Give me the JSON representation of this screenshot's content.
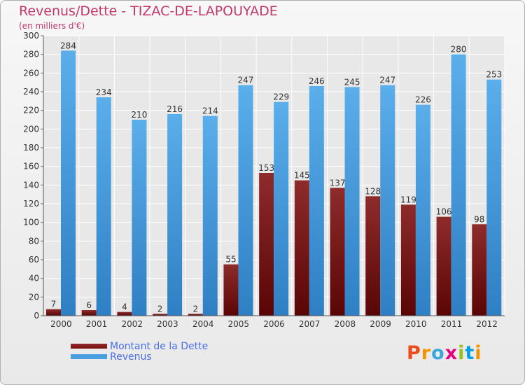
{
  "logo": {
    "text": "Proxiti"
  },
  "chart_data": {
    "type": "bar",
    "title": "Revenus/Dette - TIZAC-DE-LAPOUYADE",
    "subtitle": "(en milliers d'€)",
    "categories": [
      "2000",
      "2001",
      "2002",
      "2003",
      "2004",
      "2005",
      "2006",
      "2007",
      "2008",
      "2009",
      "2010",
      "2011",
      "2012"
    ],
    "series": [
      {
        "name": "Montant de la Dette",
        "color": "#7a1010",
        "values": [
          7,
          6,
          4,
          2,
          2,
          55,
          153,
          145,
          137,
          128,
          119,
          106,
          98
        ]
      },
      {
        "name": "Revenus",
        "color": "#4a9fe0",
        "values": [
          284,
          234,
          210,
          216,
          214,
          247,
          229,
          246,
          245,
          247,
          226,
          280,
          253
        ]
      }
    ],
    "ylim": [
      0,
      300
    ],
    "yticks": [
      0,
      20,
      40,
      60,
      80,
      100,
      120,
      140,
      160,
      180,
      200,
      220,
      240,
      260,
      280,
      300
    ],
    "grid": true,
    "legend": "bottom-left"
  }
}
